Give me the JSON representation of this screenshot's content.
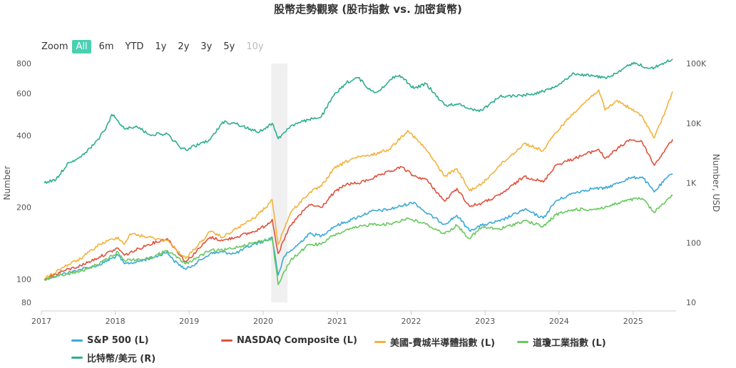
{
  "chart_data": {
    "type": "line",
    "title": "股幣走勢觀察 (股市指數 vs. 加密貨幣)",
    "zoom": {
      "label": "Zoom",
      "buttons": [
        "All",
        "6m",
        "YTD",
        "1y",
        "2y",
        "3y",
        "5y",
        "10y"
      ],
      "selected": "All",
      "disabled": [
        "10y"
      ]
    },
    "x_ticks": [
      "2017",
      "2018",
      "2019",
      "2020",
      "2021",
      "2022",
      "2023",
      "2024",
      "2025"
    ],
    "x_range": [
      "2017-01-01",
      "2025-08-01"
    ],
    "y_left": {
      "label": "Number",
      "scale": "log",
      "range": [
        80,
        800
      ],
      "ticks": [
        "80",
        "100",
        "200",
        "400",
        "600",
        "800"
      ]
    },
    "y_right": {
      "label": "Number, USD",
      "scale": "log",
      "range": [
        10,
        100000
      ],
      "ticks": [
        "10",
        "100",
        "1K",
        "10K",
        "100K"
      ]
    },
    "shaded_band": [
      "2020-02-10",
      "2020-04-30"
    ],
    "series": [
      {
        "name": "S&P 500 (L)",
        "axis": "left",
        "color": "#3aa9d6",
        "points": [
          [
            "2017-01",
            100
          ],
          [
            "2017-04",
            105
          ],
          [
            "2017-07",
            110
          ],
          [
            "2017-10",
            115
          ],
          [
            "2018-01",
            126
          ],
          [
            "2018-02",
            116
          ],
          [
            "2018-04",
            118
          ],
          [
            "2018-07",
            124
          ],
          [
            "2018-09",
            130
          ],
          [
            "2018-10",
            120
          ],
          [
            "2018-12",
            110
          ],
          [
            "2019-01",
            114
          ],
          [
            "2019-04",
            128
          ],
          [
            "2019-06",
            130
          ],
          [
            "2019-08",
            128
          ],
          [
            "2019-11",
            140
          ],
          [
            "2020-01",
            145
          ],
          [
            "2020-02",
            150
          ],
          [
            "2020-03",
            104
          ],
          [
            "2020-04",
            125
          ],
          [
            "2020-06",
            138
          ],
          [
            "2020-08",
            155
          ],
          [
            "2020-10",
            152
          ],
          [
            "2020-12",
            166
          ],
          [
            "2021-03",
            178
          ],
          [
            "2021-06",
            192
          ],
          [
            "2021-09",
            196
          ],
          [
            "2022-01",
            210
          ],
          [
            "2022-03",
            190
          ],
          [
            "2022-06",
            170
          ],
          [
            "2022-08",
            185
          ],
          [
            "2022-10",
            160
          ],
          [
            "2022-12",
            168
          ],
          [
            "2023-03",
            175
          ],
          [
            "2023-07",
            196
          ],
          [
            "2023-10",
            180
          ],
          [
            "2023-12",
            212
          ],
          [
            "2024-03",
            230
          ],
          [
            "2024-06",
            240
          ],
          [
            "2024-08",
            240
          ],
          [
            "2024-12",
            265
          ],
          [
            "2025-02",
            268
          ],
          [
            "2025-04",
            232
          ],
          [
            "2025-06",
            265
          ],
          [
            "2025-07",
            276
          ]
        ]
      },
      {
        "name": "NASDAQ Composite (L)",
        "axis": "left",
        "color": "#e0513d",
        "points": [
          [
            "2017-01",
            100
          ],
          [
            "2017-04",
            108
          ],
          [
            "2017-07",
            114
          ],
          [
            "2017-10",
            124
          ],
          [
            "2018-01",
            135
          ],
          [
            "2018-02",
            126
          ],
          [
            "2018-06",
            140
          ],
          [
            "2018-09",
            148
          ],
          [
            "2018-12",
            118
          ],
          [
            "2019-04",
            150
          ],
          [
            "2019-06",
            145
          ],
          [
            "2019-11",
            158
          ],
          [
            "2020-01",
            168
          ],
          [
            "2020-02",
            178
          ],
          [
            "2020-03",
            128
          ],
          [
            "2020-05",
            168
          ],
          [
            "2020-08",
            205
          ],
          [
            "2020-10",
            200
          ],
          [
            "2020-12",
            230
          ],
          [
            "2021-02",
            250
          ],
          [
            "2021-04",
            252
          ],
          [
            "2021-08",
            275
          ],
          [
            "2021-11",
            295
          ],
          [
            "2022-01",
            270
          ],
          [
            "2022-03",
            262
          ],
          [
            "2022-06",
            212
          ],
          [
            "2022-08",
            240
          ],
          [
            "2022-10",
            202
          ],
          [
            "2022-12",
            208
          ],
          [
            "2023-03",
            225
          ],
          [
            "2023-07",
            270
          ],
          [
            "2023-10",
            255
          ],
          [
            "2023-12",
            300
          ],
          [
            "2024-03",
            320
          ],
          [
            "2024-07",
            350
          ],
          [
            "2024-08",
            320
          ],
          [
            "2024-12",
            385
          ],
          [
            "2025-02",
            375
          ],
          [
            "2025-04",
            300
          ],
          [
            "2025-06",
            355
          ],
          [
            "2025-07",
            385
          ]
        ]
      },
      {
        "name": "美國-費城半導體指數 (L)",
        "axis": "left",
        "color": "#f2b23c",
        "points": [
          [
            "2017-01",
            100
          ],
          [
            "2017-04",
            112
          ],
          [
            "2017-07",
            122
          ],
          [
            "2017-10",
            140
          ],
          [
            "2018-01",
            150
          ],
          [
            "2018-02",
            140
          ],
          [
            "2018-03",
            155
          ],
          [
            "2018-06",
            150
          ],
          [
            "2018-09",
            145
          ],
          [
            "2018-12",
            122
          ],
          [
            "2019-04",
            158
          ],
          [
            "2019-06",
            150
          ],
          [
            "2019-11",
            180
          ],
          [
            "2020-01",
            200
          ],
          [
            "2020-02",
            215
          ],
          [
            "2020-03",
            140
          ],
          [
            "2020-05",
            190
          ],
          [
            "2020-08",
            230
          ],
          [
            "2020-10",
            245
          ],
          [
            "2020-12",
            290
          ],
          [
            "2021-03",
            320
          ],
          [
            "2021-06",
            330
          ],
          [
            "2021-09",
            350
          ],
          [
            "2021-12",
            420
          ],
          [
            "2022-03",
            350
          ],
          [
            "2022-06",
            270
          ],
          [
            "2022-08",
            290
          ],
          [
            "2022-10",
            235
          ],
          [
            "2022-12",
            250
          ],
          [
            "2023-03",
            300
          ],
          [
            "2023-07",
            370
          ],
          [
            "2023-10",
            345
          ],
          [
            "2023-12",
            410
          ],
          [
            "2024-03",
            500
          ],
          [
            "2024-07",
            620
          ],
          [
            "2024-08",
            510
          ],
          [
            "2024-10",
            560
          ],
          [
            "2024-12",
            520
          ],
          [
            "2025-02",
            480
          ],
          [
            "2025-04",
            390
          ],
          [
            "2025-06",
            520
          ],
          [
            "2025-07",
            610
          ]
        ]
      },
      {
        "name": "道瓊工業指數 (L)",
        "axis": "left",
        "color": "#67c95c",
        "points": [
          [
            "2017-01",
            100
          ],
          [
            "2017-04",
            104
          ],
          [
            "2017-07",
            108
          ],
          [
            "2017-10",
            116
          ],
          [
            "2018-01",
            130
          ],
          [
            "2018-02",
            120
          ],
          [
            "2018-06",
            122
          ],
          [
            "2018-09",
            132
          ],
          [
            "2018-12",
            116
          ],
          [
            "2019-04",
            132
          ],
          [
            "2019-06",
            132
          ],
          [
            "2019-11",
            142
          ],
          [
            "2020-01",
            146
          ],
          [
            "2020-02",
            148
          ],
          [
            "2020-03",
            95
          ],
          [
            "2020-05",
            120
          ],
          [
            "2020-08",
            140
          ],
          [
            "2020-10",
            140
          ],
          [
            "2020-12",
            153
          ],
          [
            "2021-03",
            163
          ],
          [
            "2021-06",
            170
          ],
          [
            "2021-09",
            170
          ],
          [
            "2021-12",
            180
          ],
          [
            "2022-03",
            170
          ],
          [
            "2022-06",
            155
          ],
          [
            "2022-08",
            168
          ],
          [
            "2022-10",
            148
          ],
          [
            "2022-12",
            165
          ],
          [
            "2023-03",
            162
          ],
          [
            "2023-07",
            176
          ],
          [
            "2023-10",
            166
          ],
          [
            "2023-12",
            186
          ],
          [
            "2024-03",
            196
          ],
          [
            "2024-06",
            196
          ],
          [
            "2024-08",
            200
          ],
          [
            "2024-12",
            215
          ],
          [
            "2025-02",
            218
          ],
          [
            "2025-04",
            190
          ],
          [
            "2025-06",
            215
          ],
          [
            "2025-07",
            224
          ]
        ]
      },
      {
        "name": "比特幣/美元 (R)",
        "axis": "right",
        "color": "#2eae8f",
        "points": [
          [
            "2017-01",
            1000
          ],
          [
            "2017-03",
            1150
          ],
          [
            "2017-05",
            2200
          ],
          [
            "2017-07",
            2700
          ],
          [
            "2017-09",
            4300
          ],
          [
            "2017-11",
            8000
          ],
          [
            "2017-12",
            14000
          ],
          [
            "2018-01",
            11000
          ],
          [
            "2018-02",
            8000
          ],
          [
            "2018-04",
            9000
          ],
          [
            "2018-06",
            6500
          ],
          [
            "2018-09",
            6600
          ],
          [
            "2018-11",
            4000
          ],
          [
            "2018-12",
            3600
          ],
          [
            "2019-04",
            5300
          ],
          [
            "2019-06",
            10500
          ],
          [
            "2019-08",
            10000
          ],
          [
            "2019-11",
            7500
          ],
          [
            "2019-12",
            7200
          ],
          [
            "2020-02",
            10000
          ],
          [
            "2020-03",
            5500
          ],
          [
            "2020-05",
            9000
          ],
          [
            "2020-08",
            11500
          ],
          [
            "2020-10",
            13000
          ],
          [
            "2020-12",
            29000
          ],
          [
            "2021-02",
            48000
          ],
          [
            "2021-04",
            58000
          ],
          [
            "2021-06",
            35000
          ],
          [
            "2021-07",
            33000
          ],
          [
            "2021-10",
            62000
          ],
          [
            "2021-11",
            60000
          ],
          [
            "2022-01",
            38000
          ],
          [
            "2022-03",
            46000
          ],
          [
            "2022-06",
            20000
          ],
          [
            "2022-08",
            21000
          ],
          [
            "2022-11",
            16500
          ],
          [
            "2022-12",
            16500
          ],
          [
            "2023-03",
            28000
          ],
          [
            "2023-07",
            29500
          ],
          [
            "2023-10",
            34000
          ],
          [
            "2023-12",
            42000
          ],
          [
            "2024-03",
            68000
          ],
          [
            "2024-06",
            62000
          ],
          [
            "2024-08",
            58000
          ],
          [
            "2024-10",
            68000
          ],
          [
            "2024-12",
            96000
          ],
          [
            "2025-01",
            102000
          ],
          [
            "2025-03",
            83000
          ],
          [
            "2025-04",
            85000
          ],
          [
            "2025-06",
            107000
          ],
          [
            "2025-07",
            118000
          ]
        ]
      }
    ]
  }
}
